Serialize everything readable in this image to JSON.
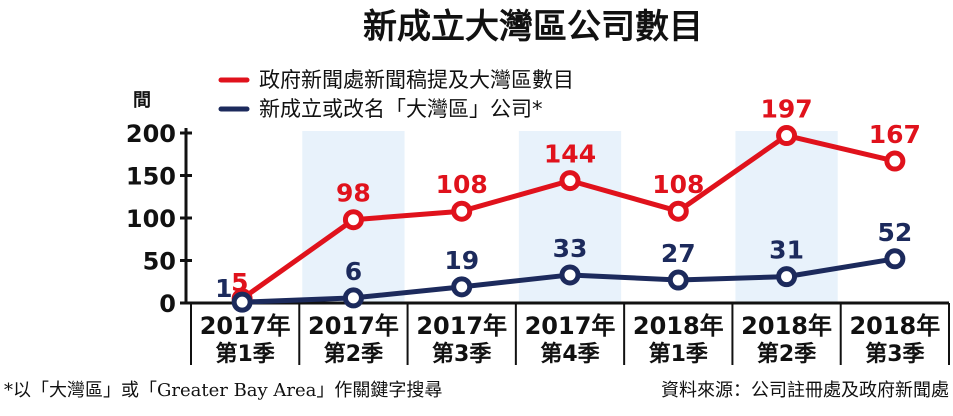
{
  "chart_data": {
    "type": "line",
    "title": "新成立大灣區公司數目",
    "ylabel": "間",
    "ylim": [
      0,
      200
    ],
    "yticks": [
      0,
      50,
      100,
      150,
      200
    ],
    "categories": [
      [
        "2017年",
        "第1季"
      ],
      [
        "2017年",
        "第2季"
      ],
      [
        "2017年",
        "第3季"
      ],
      [
        "2017年",
        "第4季"
      ],
      [
        "2018年",
        "第1季"
      ],
      [
        "2018年",
        "第2季"
      ],
      [
        "2018年",
        "第3季"
      ]
    ],
    "shaded_categories": [
      1,
      3,
      5
    ],
    "series": [
      {
        "name": "政府新聞處新聞稿提及大灣區數目",
        "color": "#e0121c",
        "values": [
          5,
          98,
          108,
          144,
          108,
          197,
          167
        ]
      },
      {
        "name": "新成立或改名「大灣區」公司*",
        "color": "#1c2a5c",
        "values": [
          1,
          6,
          19,
          33,
          27,
          31,
          52
        ]
      }
    ],
    "legend": "top-left",
    "grid": false,
    "footnote": "*以「大灣區」或「Greater Bay Area」作關鍵字搜尋",
    "source": "資料來源：公司註冊處及政府新聞處"
  }
}
